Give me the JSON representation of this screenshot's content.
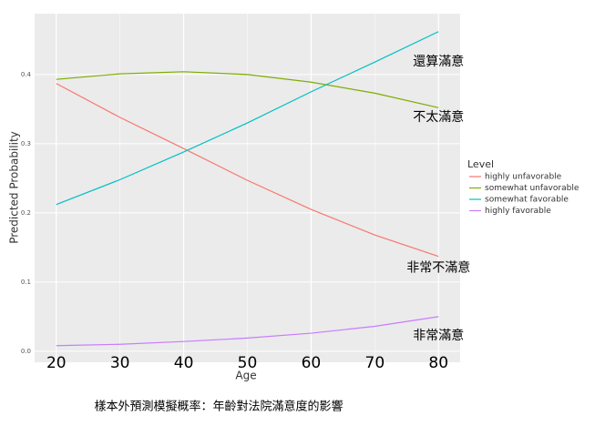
{
  "chart_data": {
    "type": "line",
    "x_label": "Age",
    "y_label": "Predicted Probability",
    "caption": "樣本外預測模擬概率：年齡對法院滿意度的影響",
    "x": [
      20,
      30,
      40,
      50,
      60,
      70,
      80
    ],
    "series": [
      {
        "name": "highly unfavorable",
        "color": "#F8766D",
        "values": [
          0.387,
          0.338,
          0.293,
          0.247,
          0.205,
          0.168,
          0.137
        ]
      },
      {
        "name": "somewhat unfavorable",
        "color": "#7CAE00",
        "values": [
          0.393,
          0.401,
          0.404,
          0.4,
          0.389,
          0.373,
          0.352
        ]
      },
      {
        "name": "somewhat favorable",
        "color": "#00BFC4",
        "values": [
          0.212,
          0.248,
          0.288,
          0.33,
          0.375,
          0.418,
          0.462
        ]
      },
      {
        "name": "highly favorable",
        "color": "#C77CFF",
        "values": [
          0.008,
          0.01,
          0.014,
          0.019,
          0.026,
          0.036,
          0.05
        ]
      }
    ],
    "legend_title": "Level",
    "annotations": [
      {
        "text": "還算滿意",
        "x": 80,
        "y": 0.418
      },
      {
        "text": "不太滿意",
        "x": 80,
        "y": 0.338
      },
      {
        "text": "非常不滿意",
        "x": 80,
        "y": 0.12
      },
      {
        "text": "非常滿意",
        "x": 80,
        "y": 0.022
      }
    ],
    "xlim": [
      16.6,
      83.4
    ],
    "ylim": [
      -0.016,
      0.488
    ],
    "xticks": [
      20,
      30,
      40,
      50,
      60,
      70,
      80
    ],
    "yticks": [
      {
        "value": 0,
        "label": "0.0"
      },
      0.1,
      0.2,
      0.3,
      0.4
    ],
    "grid": true
  }
}
